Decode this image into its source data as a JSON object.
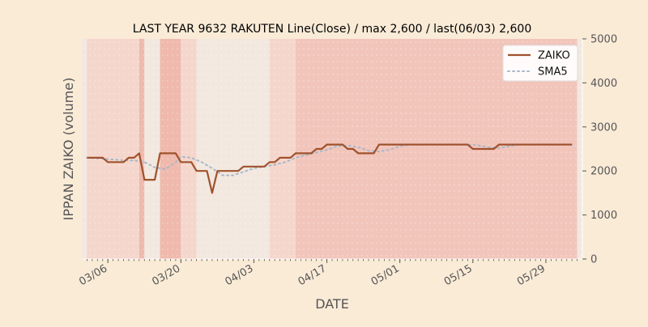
{
  "chart_data": {
    "type": "line",
    "title": "LAST YEAR 9632 RAKUTEN Line(Close) / max 2,600 / last(06/03) 2,600",
    "xlabel": "DATE",
    "ylabel": "IPPAN ZAIKO (volume)",
    "ylim": [
      0,
      5000
    ],
    "y_ticks": [
      0,
      1000,
      2000,
      3000,
      4000,
      5000
    ],
    "y_axis_side": "right",
    "x_ticks": [
      "03/06",
      "03/20",
      "04/03",
      "04/17",
      "05/01",
      "05/15",
      "05/29"
    ],
    "x_range": [
      "2023-03-01",
      "2023-06-05"
    ],
    "grid": false,
    "legend_position": "top-right",
    "colors": {
      "background": "#faebd7",
      "plot_bg": "#f6e8dc",
      "zaiko": "#a0522d",
      "sma5": "#a8b8c8",
      "band_light": "#f5d6cc",
      "band_mid": "#f2c5bb",
      "band_strong": "#efb9ad",
      "band_pale": "#f2e8e0"
    },
    "background_bands": [
      {
        "start": "2023-03-01",
        "end": "2023-03-02",
        "level": "pale"
      },
      {
        "start": "2023-03-02",
        "end": "2023-03-12",
        "level": "light"
      },
      {
        "start": "2023-03-12",
        "end": "2023-03-13",
        "level": "strong"
      },
      {
        "start": "2023-03-13",
        "end": "2023-03-16",
        "level": "pale"
      },
      {
        "start": "2023-03-16",
        "end": "2023-03-20",
        "level": "strong"
      },
      {
        "start": "2023-03-20",
        "end": "2023-03-23",
        "level": "light"
      },
      {
        "start": "2023-03-23",
        "end": "2023-04-06",
        "level": "pale"
      },
      {
        "start": "2023-04-06",
        "end": "2023-04-11",
        "level": "light"
      },
      {
        "start": "2023-04-11",
        "end": "2023-06-04",
        "level": "mid"
      },
      {
        "start": "2023-06-04",
        "end": "2023-06-05",
        "level": "pale"
      }
    ],
    "series": [
      {
        "name": "ZAIKO",
        "style": "solid",
        "points": [
          [
            "2023-03-02",
            2300
          ],
          [
            "2023-03-03",
            2300
          ],
          [
            "2023-03-04",
            2300
          ],
          [
            "2023-03-05",
            2300
          ],
          [
            "2023-03-06",
            2200
          ],
          [
            "2023-03-07",
            2200
          ],
          [
            "2023-03-08",
            2200
          ],
          [
            "2023-03-09",
            2200
          ],
          [
            "2023-03-10",
            2300
          ],
          [
            "2023-03-11",
            2300
          ],
          [
            "2023-03-12",
            2400
          ],
          [
            "2023-03-13",
            1800
          ],
          [
            "2023-03-14",
            1800
          ],
          [
            "2023-03-15",
            1800
          ],
          [
            "2023-03-16",
            2400
          ],
          [
            "2023-03-17",
            2400
          ],
          [
            "2023-03-18",
            2400
          ],
          [
            "2023-03-19",
            2400
          ],
          [
            "2023-03-20",
            2200
          ],
          [
            "2023-03-21",
            2200
          ],
          [
            "2023-03-22",
            2200
          ],
          [
            "2023-03-23",
            2000
          ],
          [
            "2023-03-24",
            2000
          ],
          [
            "2023-03-25",
            2000
          ],
          [
            "2023-03-26",
            1500
          ],
          [
            "2023-03-27",
            2000
          ],
          [
            "2023-03-28",
            2000
          ],
          [
            "2023-03-29",
            2000
          ],
          [
            "2023-03-30",
            2000
          ],
          [
            "2023-03-31",
            2000
          ],
          [
            "2023-04-01",
            2100
          ],
          [
            "2023-04-02",
            2100
          ],
          [
            "2023-04-03",
            2100
          ],
          [
            "2023-04-04",
            2100
          ],
          [
            "2023-04-05",
            2100
          ],
          [
            "2023-04-06",
            2200
          ],
          [
            "2023-04-07",
            2200
          ],
          [
            "2023-04-08",
            2300
          ],
          [
            "2023-04-09",
            2300
          ],
          [
            "2023-04-10",
            2300
          ],
          [
            "2023-04-11",
            2400
          ],
          [
            "2023-04-12",
            2400
          ],
          [
            "2023-04-13",
            2400
          ],
          [
            "2023-04-14",
            2400
          ],
          [
            "2023-04-15",
            2500
          ],
          [
            "2023-04-16",
            2500
          ],
          [
            "2023-04-17",
            2600
          ],
          [
            "2023-04-18",
            2600
          ],
          [
            "2023-04-19",
            2600
          ],
          [
            "2023-04-20",
            2600
          ],
          [
            "2023-04-21",
            2500
          ],
          [
            "2023-04-22",
            2500
          ],
          [
            "2023-04-23",
            2400
          ],
          [
            "2023-04-24",
            2400
          ],
          [
            "2023-04-25",
            2400
          ],
          [
            "2023-04-26",
            2400
          ],
          [
            "2023-04-27",
            2600
          ],
          [
            "2023-04-28",
            2600
          ],
          [
            "2023-04-29",
            2600
          ],
          [
            "2023-04-30",
            2600
          ],
          [
            "2023-05-01",
            2600
          ],
          [
            "2023-05-02",
            2600
          ],
          [
            "2023-05-03",
            2600
          ],
          [
            "2023-05-04",
            2600
          ],
          [
            "2023-05-05",
            2600
          ],
          [
            "2023-05-06",
            2600
          ],
          [
            "2023-05-07",
            2600
          ],
          [
            "2023-05-08",
            2600
          ],
          [
            "2023-05-09",
            2600
          ],
          [
            "2023-05-10",
            2600
          ],
          [
            "2023-05-11",
            2600
          ],
          [
            "2023-05-12",
            2600
          ],
          [
            "2023-05-13",
            2600
          ],
          [
            "2023-05-14",
            2600
          ],
          [
            "2023-05-15",
            2500
          ],
          [
            "2023-05-16",
            2500
          ],
          [
            "2023-05-17",
            2500
          ],
          [
            "2023-05-18",
            2500
          ],
          [
            "2023-05-19",
            2500
          ],
          [
            "2023-05-20",
            2600
          ],
          [
            "2023-05-21",
            2600
          ],
          [
            "2023-05-22",
            2600
          ],
          [
            "2023-05-23",
            2600
          ],
          [
            "2023-05-24",
            2600
          ],
          [
            "2023-05-25",
            2600
          ],
          [
            "2023-05-26",
            2600
          ],
          [
            "2023-05-27",
            2600
          ],
          [
            "2023-05-28",
            2600
          ],
          [
            "2023-05-29",
            2600
          ],
          [
            "2023-05-30",
            2600
          ],
          [
            "2023-05-31",
            2600
          ],
          [
            "2023-06-01",
            2600
          ],
          [
            "2023-06-02",
            2600
          ],
          [
            "2023-06-03",
            2600
          ]
        ]
      },
      {
        "name": "SMA5",
        "style": "dotted",
        "points": [
          [
            "2023-03-02",
            2300
          ],
          [
            "2023-03-05",
            2280
          ],
          [
            "2023-03-07",
            2260
          ],
          [
            "2023-03-09",
            2240
          ],
          [
            "2023-03-11",
            2240
          ],
          [
            "2023-03-13",
            2200
          ],
          [
            "2023-03-15",
            2080
          ],
          [
            "2023-03-17",
            2040
          ],
          [
            "2023-03-19",
            2200
          ],
          [
            "2023-03-20",
            2320
          ],
          [
            "2023-03-22",
            2300
          ],
          [
            "2023-03-24",
            2200
          ],
          [
            "2023-03-26",
            2060
          ],
          [
            "2023-03-28",
            1900
          ],
          [
            "2023-03-30",
            1900
          ],
          [
            "2023-04-01",
            1980
          ],
          [
            "2023-04-03",
            2060
          ],
          [
            "2023-04-05",
            2100
          ],
          [
            "2023-04-07",
            2140
          ],
          [
            "2023-04-09",
            2200
          ],
          [
            "2023-04-11",
            2300
          ],
          [
            "2023-04-13",
            2360
          ],
          [
            "2023-04-15",
            2420
          ],
          [
            "2023-04-17",
            2480
          ],
          [
            "2023-04-19",
            2560
          ],
          [
            "2023-04-21",
            2580
          ],
          [
            "2023-04-23",
            2540
          ],
          [
            "2023-04-25",
            2460
          ],
          [
            "2023-04-27",
            2440
          ],
          [
            "2023-04-29",
            2480
          ],
          [
            "2023-05-01",
            2560
          ],
          [
            "2023-05-03",
            2600
          ],
          [
            "2023-05-05",
            2600
          ],
          [
            "2023-05-10",
            2600
          ],
          [
            "2023-05-14",
            2600
          ],
          [
            "2023-05-16",
            2580
          ],
          [
            "2023-05-18",
            2540
          ],
          [
            "2023-05-20",
            2520
          ],
          [
            "2023-05-22",
            2560
          ],
          [
            "2023-05-24",
            2600
          ],
          [
            "2023-05-29",
            2600
          ],
          [
            "2023-06-03",
            2600
          ]
        ]
      }
    ]
  }
}
